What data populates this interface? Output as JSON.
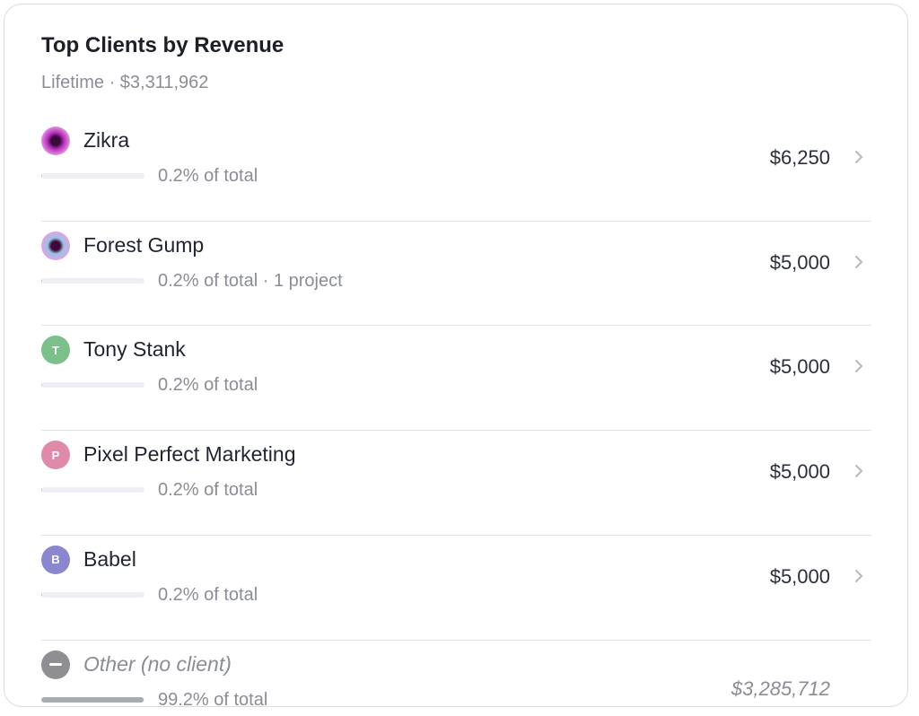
{
  "header": {
    "title": "Top Clients by Revenue",
    "subtitle": "Lifetime · $3,311,962"
  },
  "rows": [
    {
      "name": "Zikra",
      "share": 0.2,
      "share_label": "0.2% of total",
      "amount": "$6,250",
      "avatar_color": "#b52bb8"
    },
    {
      "name": "Forest Gump",
      "share": 0.2,
      "share_label": "0.2% of total · 1 project",
      "amount": "$5,000",
      "avatar_color": "#9cc3e0"
    },
    {
      "name": "Tony Stank",
      "avatar_letter": "T",
      "share": 0.2,
      "share_label": "0.2% of total",
      "amount": "$5,000",
      "avatar_color": "#7bbf8a"
    },
    {
      "name": "Pixel Perfect Marketing",
      "avatar_letter": "P",
      "share": 0.2,
      "share_label": "0.2% of total",
      "amount": "$5,000",
      "avatar_color": "#e08aab"
    },
    {
      "name": "Babel",
      "avatar_letter": "B",
      "share": 0.2,
      "share_label": "0.2% of total",
      "amount": "$5,000",
      "avatar_color": "#8b87cf"
    },
    {
      "name": "Other (no client)",
      "share": 99.2,
      "share_label": "99.2% of total",
      "amount": "$3,285,712",
      "avatar_color": "#8e8e93",
      "muted": true
    }
  ]
}
